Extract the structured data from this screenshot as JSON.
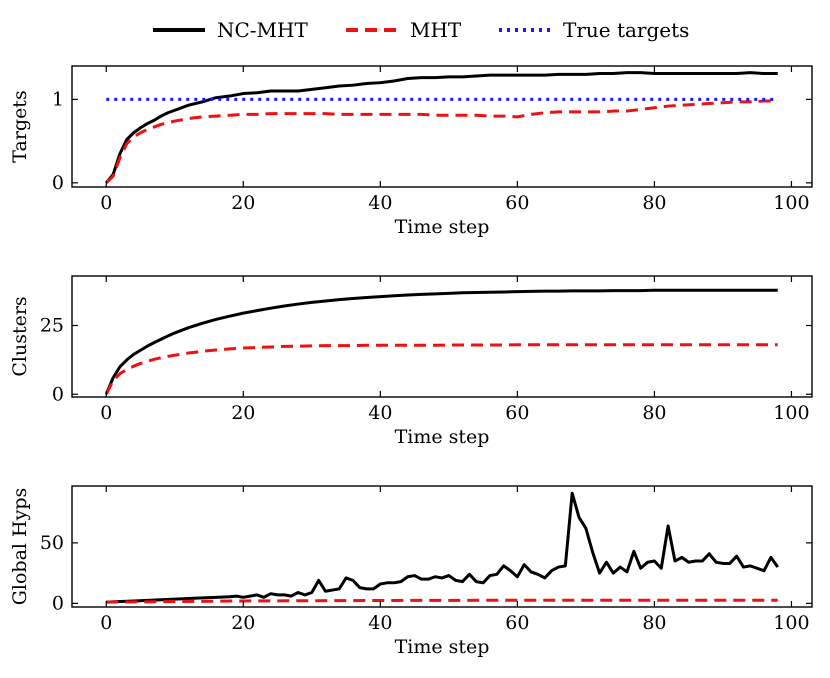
{
  "legend": [
    {
      "label": "NC-MHT",
      "color": "#000000",
      "style": "solid"
    },
    {
      "label": "MHT",
      "color": "#ee1111",
      "style": "dashed"
    },
    {
      "label": "True targets",
      "color": "#1a1aee",
      "style": "dotted"
    }
  ],
  "chart_data": [
    {
      "type": "line",
      "title": "",
      "xlabel": "Time step",
      "ylabel": "Targets",
      "xlim": [
        -5,
        103
      ],
      "ylim": [
        -0.05,
        1.4
      ],
      "xticks": [
        0,
        20,
        40,
        60,
        80,
        100
      ],
      "yticks": [
        0,
        1
      ],
      "series": [
        {
          "name": "NC-MHT",
          "color": "#000000",
          "style": "solid",
          "x": [
            0,
            1,
            2,
            3,
            4,
            5,
            6,
            7,
            8,
            9,
            10,
            12,
            14,
            16,
            18,
            20,
            22,
            24,
            26,
            28,
            30,
            32,
            34,
            36,
            38,
            40,
            42,
            44,
            46,
            48,
            50,
            52,
            54,
            56,
            58,
            60,
            62,
            64,
            66,
            68,
            70,
            72,
            74,
            76,
            78,
            80,
            82,
            84,
            86,
            88,
            90,
            92,
            94,
            96,
            98
          ],
          "y": [
            0,
            0.1,
            0.35,
            0.52,
            0.6,
            0.66,
            0.71,
            0.75,
            0.8,
            0.84,
            0.87,
            0.93,
            0.97,
            1.02,
            1.04,
            1.07,
            1.08,
            1.1,
            1.1,
            1.1,
            1.12,
            1.14,
            1.16,
            1.17,
            1.19,
            1.2,
            1.22,
            1.25,
            1.26,
            1.26,
            1.27,
            1.27,
            1.28,
            1.29,
            1.29,
            1.29,
            1.29,
            1.29,
            1.3,
            1.3,
            1.3,
            1.31,
            1.31,
            1.32,
            1.32,
            1.31,
            1.31,
            1.31,
            1.31,
            1.31,
            1.31,
            1.31,
            1.32,
            1.31,
            1.31
          ]
        },
        {
          "name": "MHT",
          "color": "#ee1111",
          "style": "dashed",
          "x": [
            0,
            1,
            2,
            3,
            4,
            5,
            6,
            7,
            8,
            9,
            10,
            12,
            14,
            16,
            18,
            20,
            22,
            24,
            26,
            28,
            30,
            32,
            34,
            36,
            38,
            40,
            42,
            44,
            46,
            48,
            50,
            52,
            54,
            56,
            58,
            60,
            62,
            64,
            66,
            68,
            70,
            72,
            74,
            76,
            78,
            80,
            82,
            84,
            86,
            88,
            90,
            92,
            94,
            96,
            98
          ],
          "y": [
            0,
            0.08,
            0.3,
            0.47,
            0.55,
            0.6,
            0.64,
            0.67,
            0.7,
            0.72,
            0.74,
            0.77,
            0.79,
            0.8,
            0.81,
            0.82,
            0.82,
            0.83,
            0.83,
            0.83,
            0.83,
            0.83,
            0.82,
            0.82,
            0.82,
            0.82,
            0.82,
            0.82,
            0.82,
            0.81,
            0.81,
            0.81,
            0.81,
            0.8,
            0.8,
            0.79,
            0.82,
            0.84,
            0.85,
            0.85,
            0.85,
            0.85,
            0.86,
            0.86,
            0.88,
            0.9,
            0.92,
            0.93,
            0.94,
            0.95,
            0.96,
            0.97,
            0.97,
            0.98,
            0.98
          ]
        },
        {
          "name": "True targets",
          "color": "#1a1aee",
          "style": "dotted",
          "x": [
            0,
            98
          ],
          "y": [
            1,
            1
          ]
        }
      ]
    },
    {
      "type": "line",
      "title": "",
      "xlabel": "Time step",
      "ylabel": "Clusters",
      "xlim": [
        -5,
        103
      ],
      "ylim": [
        -1,
        43
      ],
      "xticks": [
        0,
        20,
        40,
        60,
        80,
        100
      ],
      "yticks": [
        0,
        25
      ],
      "series": [
        {
          "name": "NC-MHT",
          "color": "#000000",
          "style": "solid",
          "x": [
            0,
            1,
            2,
            3,
            4,
            5,
            6,
            7,
            8,
            9,
            10,
            12,
            14,
            16,
            18,
            20,
            22,
            24,
            26,
            28,
            30,
            32,
            34,
            36,
            38,
            40,
            42,
            44,
            46,
            48,
            50,
            52,
            54,
            56,
            58,
            60,
            62,
            64,
            66,
            68,
            70,
            72,
            74,
            76,
            78,
            80,
            82,
            84,
            86,
            88,
            90,
            92,
            94,
            96,
            98
          ],
          "y": [
            0,
            6,
            10,
            12.5,
            14.5,
            16,
            17.5,
            18.8,
            20,
            21.2,
            22.3,
            24.2,
            25.8,
            27.2,
            28.4,
            29.5,
            30.4,
            31.3,
            32.1,
            32.8,
            33.4,
            33.9,
            34.4,
            34.8,
            35.2,
            35.5,
            35.8,
            36.1,
            36.3,
            36.5,
            36.7,
            36.9,
            37,
            37.1,
            37.2,
            37.3,
            37.4,
            37.5,
            37.5,
            37.6,
            37.6,
            37.6,
            37.7,
            37.7,
            37.7,
            37.8,
            37.8,
            37.8,
            37.8,
            37.8,
            37.8,
            37.8,
            37.8,
            37.8,
            37.8
          ]
        },
        {
          "name": "MHT",
          "color": "#ee1111",
          "style": "dashed",
          "x": [
            0,
            1,
            2,
            3,
            4,
            5,
            6,
            7,
            8,
            9,
            10,
            12,
            14,
            16,
            18,
            20,
            22,
            24,
            26,
            28,
            30,
            32,
            34,
            36,
            38,
            40,
            42,
            44,
            46,
            48,
            50,
            52,
            54,
            56,
            58,
            60,
            62,
            64,
            66,
            68,
            70,
            72,
            74,
            76,
            78,
            80,
            82,
            84,
            86,
            88,
            90,
            92,
            94,
            96,
            98
          ],
          "y": [
            0,
            5,
            7.5,
            9,
            10.2,
            11.2,
            12,
            12.7,
            13.3,
            13.8,
            14.2,
            15,
            15.6,
            16.1,
            16.5,
            16.8,
            17,
            17.2,
            17.4,
            17.5,
            17.6,
            17.7,
            17.7,
            17.7,
            17.8,
            17.8,
            17.8,
            17.8,
            17.8,
            17.8,
            17.9,
            17.9,
            17.9,
            17.9,
            17.9,
            18,
            18,
            18,
            18,
            18,
            18,
            18,
            18,
            18,
            18,
            18,
            18,
            18,
            18,
            18,
            18,
            18,
            18,
            18,
            18
          ]
        }
      ]
    },
    {
      "type": "line",
      "title": "",
      "xlabel": "Time step",
      "ylabel": "Global Hyps",
      "xlim": [
        -5,
        103
      ],
      "ylim": [
        -3,
        97
      ],
      "xticks": [
        0,
        20,
        40,
        60,
        80,
        100
      ],
      "yticks": [
        0,
        50
      ],
      "series": [
        {
          "name": "NC-MHT",
          "color": "#000000",
          "style": "solid",
          "x": [
            0,
            2,
            4,
            6,
            8,
            10,
            12,
            14,
            16,
            18,
            19,
            20,
            21,
            22,
            23,
            24,
            25,
            26,
            27,
            28,
            29,
            30,
            31,
            32,
            33,
            34,
            35,
            36,
            37,
            38,
            39,
            40,
            41,
            42,
            43,
            44,
            45,
            46,
            47,
            48,
            49,
            50,
            51,
            52,
            53,
            54,
            55,
            56,
            57,
            58,
            59,
            60,
            61,
            62,
            63,
            64,
            65,
            66,
            67,
            68,
            69,
            70,
            71,
            72,
            73,
            74,
            75,
            76,
            77,
            78,
            79,
            80,
            81,
            82,
            83,
            84,
            85,
            86,
            87,
            88,
            89,
            90,
            91,
            92,
            93,
            94,
            95,
            96,
            97,
            98
          ],
          "y": [
            1,
            1.5,
            2,
            2.5,
            3,
            3.5,
            4,
            4.5,
            5,
            5.5,
            6,
            5,
            6,
            7,
            5,
            8,
            7,
            7,
            6,
            9,
            7,
            9,
            19,
            10,
            11,
            12,
            21,
            19,
            13,
            12,
            12,
            16,
            17,
            17,
            18,
            22,
            23,
            20,
            20,
            22,
            21,
            23,
            19,
            18,
            24,
            18,
            17,
            23,
            24,
            31,
            27,
            22,
            32,
            26,
            24,
            21,
            27,
            30,
            31,
            91,
            71,
            62,
            42,
            25,
            34,
            25,
            30,
            26,
            43,
            29,
            34,
            35,
            29,
            64,
            35,
            38,
            34,
            35,
            35,
            41,
            34,
            33,
            33,
            39,
            30,
            31,
            29,
            27,
            38,
            30
          ]
        },
        {
          "name": "MHT",
          "color": "#ee1111",
          "style": "dashed",
          "x": [
            0,
            10,
            20,
            30,
            40,
            50,
            60,
            70,
            80,
            90,
            98
          ],
          "y": [
            1,
            1.5,
            2,
            2.2,
            2.4,
            2.5,
            2.6,
            2.6,
            2.6,
            2.6,
            2.6
          ]
        }
      ]
    }
  ]
}
